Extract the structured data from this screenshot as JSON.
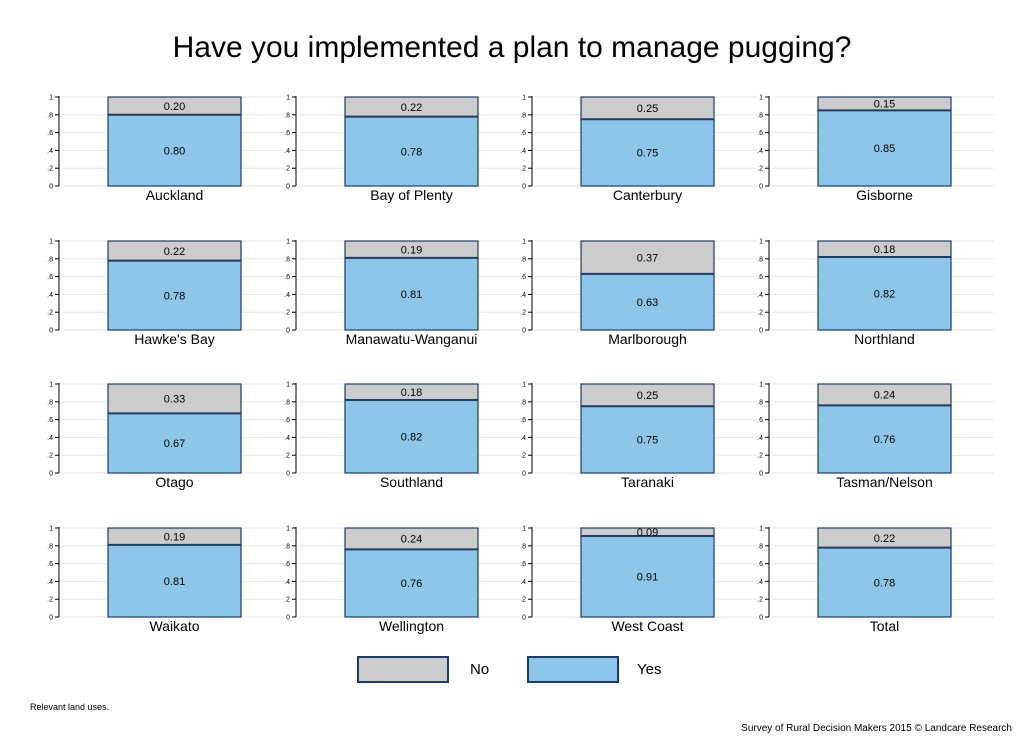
{
  "chart_data": {
    "type": "bar",
    "title": "Have you implemented a plan to manage pugging?",
    "stacked": true,
    "ylim": [
      0,
      1
    ],
    "yticks": [
      "0",
      ".2",
      ".4",
      ".6",
      ".8",
      "1"
    ],
    "series": [
      {
        "name": "No",
        "color": "#cccccc"
      },
      {
        "name": "Yes",
        "color": "#8ec6ea"
      }
    ],
    "panels": [
      {
        "region": "Auckland",
        "yes": 0.8,
        "no": 0.2,
        "yes_label": "0.80",
        "no_label": "0.20"
      },
      {
        "region": "Bay of Plenty",
        "yes": 0.78,
        "no": 0.22,
        "yes_label": "0.78",
        "no_label": "0.22"
      },
      {
        "region": "Canterbury",
        "yes": 0.75,
        "no": 0.25,
        "yes_label": "0.75",
        "no_label": "0.25"
      },
      {
        "region": "Gisborne",
        "yes": 0.85,
        "no": 0.15,
        "yes_label": "0.85",
        "no_label": "0.15"
      },
      {
        "region": "Hawke's Bay",
        "yes": 0.78,
        "no": 0.22,
        "yes_label": "0.78",
        "no_label": "0.22"
      },
      {
        "region": "Manawatu-Wanganui",
        "yes": 0.81,
        "no": 0.19,
        "yes_label": "0.81",
        "no_label": "0.19"
      },
      {
        "region": "Marlborough",
        "yes": 0.63,
        "no": 0.37,
        "yes_label": "0.63",
        "no_label": "0.37"
      },
      {
        "region": "Northland",
        "yes": 0.82,
        "no": 0.18,
        "yes_label": "0.82",
        "no_label": "0.18"
      },
      {
        "region": "Otago",
        "yes": 0.67,
        "no": 0.33,
        "yes_label": "0.67",
        "no_label": "0.33"
      },
      {
        "region": "Southland",
        "yes": 0.82,
        "no": 0.18,
        "yes_label": "0.82",
        "no_label": "0.18"
      },
      {
        "region": "Taranaki",
        "yes": 0.75,
        "no": 0.25,
        "yes_label": "0.75",
        "no_label": "0.25"
      },
      {
        "region": "Tasman/Nelson",
        "yes": 0.76,
        "no": 0.24,
        "yes_label": "0.76",
        "no_label": "0.24"
      },
      {
        "region": "Waikato",
        "yes": 0.81,
        "no": 0.19,
        "yes_label": "0.81",
        "no_label": "0.19"
      },
      {
        "region": "Wellington",
        "yes": 0.76,
        "no": 0.24,
        "yes_label": "0.76",
        "no_label": "0.24"
      },
      {
        "region": "West Coast",
        "yes": 0.91,
        "no": 0.09,
        "yes_label": "0.91",
        "no_label": "0.09"
      },
      {
        "region": "Total",
        "yes": 0.78,
        "no": 0.22,
        "yes_label": "0.78",
        "no_label": "0.22"
      }
    ],
    "legend": {
      "position": "bottom",
      "no_label": "No",
      "yes_label": "Yes"
    },
    "grid": true
  },
  "footer": {
    "note": "Relevant land uses.",
    "credit": "Survey of Rural Decision Makers 2015 © Landcare Research"
  },
  "colors": {
    "no": "#cccccc",
    "yes": "#8ec6ea",
    "border": "#1f3a64",
    "grid": "#e6e6e6"
  }
}
